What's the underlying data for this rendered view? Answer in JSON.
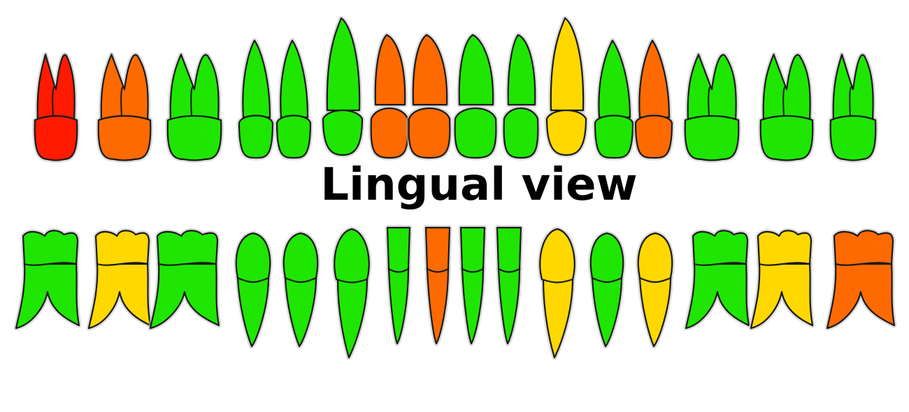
{
  "title": "Lingual view",
  "colors": {
    "red": "#ff1a00",
    "orange": "#ff6a00",
    "green": "#1ee600",
    "yellow": "#ffd800",
    "outline": "#1a1a1a",
    "halo": "#bdbdbd"
  },
  "upper_teeth": [
    {
      "type": "molar-upper",
      "status": "red"
    },
    {
      "type": "molar-upper",
      "status": "orange"
    },
    {
      "type": "molar-upper",
      "status": "green"
    },
    {
      "type": "premolar-upper",
      "status": "green"
    },
    {
      "type": "premolar-upper",
      "status": "green"
    },
    {
      "type": "canine-upper",
      "status": "green"
    },
    {
      "type": "incisor-upper",
      "status": "orange"
    },
    {
      "type": "incisor-upper",
      "status": "orange"
    },
    {
      "type": "incisor-upper",
      "status": "green"
    },
    {
      "type": "incisor-upper",
      "status": "green"
    },
    {
      "type": "canine-upper",
      "status": "yellow"
    },
    {
      "type": "premolar-upper",
      "status": "green"
    },
    {
      "type": "premolar-upper",
      "status": "orange"
    },
    {
      "type": "molar-upper",
      "status": "green"
    },
    {
      "type": "molar-upper",
      "status": "green"
    },
    {
      "type": "molar-upper",
      "status": "green"
    }
  ],
  "lower_teeth": [
    {
      "type": "molar-lower",
      "status": "green"
    },
    {
      "type": "molar-lower",
      "status": "yellow"
    },
    {
      "type": "molar-lower",
      "status": "green"
    },
    {
      "type": "premolar-lower",
      "status": "green"
    },
    {
      "type": "premolar-lower",
      "status": "green"
    },
    {
      "type": "canine-lower",
      "status": "green"
    },
    {
      "type": "incisor-lower",
      "status": "green"
    },
    {
      "type": "incisor-lower",
      "status": "orange"
    },
    {
      "type": "incisor-lower",
      "status": "green"
    },
    {
      "type": "incisor-lower",
      "status": "green"
    },
    {
      "type": "canine-lower",
      "status": "yellow"
    },
    {
      "type": "premolar-lower",
      "status": "green"
    },
    {
      "type": "premolar-lower",
      "status": "yellow"
    },
    {
      "type": "molar-lower",
      "status": "green"
    },
    {
      "type": "molar-lower",
      "status": "yellow"
    },
    {
      "type": "molar-lower",
      "status": "orange"
    }
  ]
}
